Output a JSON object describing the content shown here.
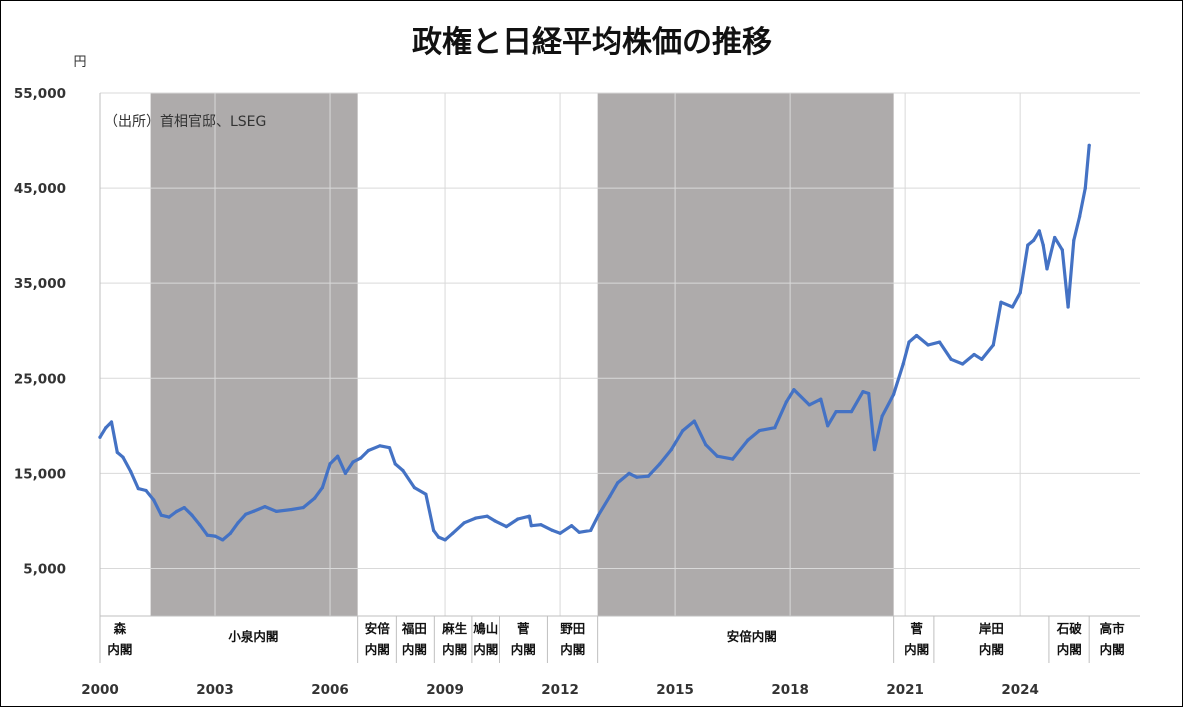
{
  "chart_data": {
    "type": "line",
    "title": "政権と日経平均株価の推移",
    "ylabel": "円",
    "note": "（出所）首相官邸、LSEG",
    "ylim": [
      0,
      55000
    ],
    "yticks": [
      5000,
      15000,
      25000,
      35000,
      45000,
      55000
    ],
    "ytick_labels": [
      "5,000",
      "15,000",
      "25,000",
      "35,000",
      "45,000",
      "55,000"
    ],
    "xlim": [
      2000,
      2025.9
    ],
    "xticks": [
      2000,
      2003,
      2006,
      2009,
      2012,
      2015,
      2018,
      2021,
      2024
    ],
    "xtick_labels": [
      "2000",
      "2003",
      "2006",
      "2009",
      "2012",
      "2015",
      "2018",
      "2021",
      "2024"
    ],
    "grid": true,
    "series": [
      {
        "color": "#4472C4",
        "x": [
          2000.0,
          2000.15,
          2000.3,
          2000.45,
          2000.6,
          2000.8,
          2001.0,
          2001.2,
          2001.4,
          2001.6,
          2001.8,
          2002.0,
          2002.2,
          2002.4,
          2002.6,
          2002.8,
          2003.0,
          2003.2,
          2003.4,
          2003.6,
          2003.8,
          2004.0,
          2004.3,
          2004.6,
          2005.0,
          2005.3,
          2005.6,
          2005.8,
          2006.0,
          2006.2,
          2006.4,
          2006.6,
          2006.8,
          2007.0,
          2007.3,
          2007.55,
          2007.7,
          2007.9,
          2008.2,
          2008.5,
          2008.7,
          2008.83,
          2009.0,
          2009.2,
          2009.5,
          2009.8,
          2010.1,
          2010.3,
          2010.6,
          2010.9,
          2011.2,
          2011.25,
          2011.5,
          2011.8,
          2012.0,
          2012.3,
          2012.5,
          2012.8,
          2013.0,
          2013.3,
          2013.5,
          2013.8,
          2014.0,
          2014.3,
          2014.6,
          2014.9,
          2015.2,
          2015.5,
          2015.8,
          2016.1,
          2016.5,
          2016.9,
          2017.2,
          2017.6,
          2017.9,
          2018.1,
          2018.5,
          2018.8,
          2018.98,
          2019.2,
          2019.6,
          2019.9,
          2020.05,
          2020.2,
          2020.4,
          2020.7,
          2020.95,
          2021.1,
          2021.3,
          2021.6,
          2021.9,
          2022.2,
          2022.5,
          2022.8,
          2023.0,
          2023.3,
          2023.5,
          2023.8,
          2024.0,
          2024.2,
          2024.35,
          2024.5,
          2024.6,
          2024.7,
          2024.9,
          2025.1,
          2025.25,
          2025.4,
          2025.55,
          2025.7,
          2025.8
        ],
        "y": [
          18800,
          19800,
          20400,
          17200,
          16700,
          15200,
          13400,
          13200,
          12200,
          10600,
          10400,
          11000,
          11400,
          10600,
          9600,
          8500,
          8400,
          8000,
          8700,
          9800,
          10700,
          11000,
          11500,
          11000,
          11200,
          11400,
          12400,
          13500,
          16000,
          16800,
          15000,
          16200,
          16600,
          17400,
          17900,
          17700,
          16000,
          15300,
          13500,
          12800,
          9000,
          8300,
          8000,
          8700,
          9800,
          10300,
          10500,
          10000,
          9400,
          10200,
          10500,
          9500,
          9600,
          9000,
          8700,
          9500,
          8800,
          9000,
          10600,
          12600,
          14000,
          15000,
          14600,
          14700,
          16000,
          17500,
          19500,
          20500,
          18000,
          16800,
          16500,
          18500,
          19500,
          19800,
          22500,
          23800,
          22200,
          22800,
          20000,
          21500,
          21500,
          23600,
          23400,
          17500,
          21000,
          23300,
          26500,
          28800,
          29500,
          28500,
          28800,
          27000,
          26500,
          27500,
          27000,
          28500,
          33000,
          32500,
          34000,
          39000,
          39500,
          40500,
          39000,
          36500,
          39800,
          38500,
          32500,
          39500,
          42000,
          45000,
          49500
        ]
      }
    ],
    "cabinet_bands": [
      [
        2001.32,
        2006.72
      ],
      [
        2012.98,
        2020.7
      ]
    ],
    "cabinet_dividers": [
      2006.72,
      2007.73,
      2008.72,
      2009.7,
      2010.42,
      2011.67,
      2012.98,
      2020.7,
      2021.75,
      2024.75,
      2025.8
    ],
    "cabinets": [
      {
        "line1": "森",
        "line2": "内閣",
        "x": 2000.52
      },
      {
        "line1": "小泉内閣",
        "line2": "",
        "x": 2004.0
      },
      {
        "line1": "安倍",
        "line2": "内閣",
        "x": 2007.23
      },
      {
        "line1": "福田",
        "line2": "内閣",
        "x": 2008.2
      },
      {
        "line1": "麻生",
        "line2": "内閣",
        "x": 2009.25
      },
      {
        "line1": "鳩山",
        "line2": "内閣",
        "x": 2010.06
      },
      {
        "line1": "菅",
        "line2": "内閣",
        "x": 2011.04
      },
      {
        "line1": "野田",
        "line2": "内閣",
        "x": 2012.33
      },
      {
        "line1": "安倍内閣",
        "line2": "",
        "x": 2017.0
      },
      {
        "line1": "菅",
        "line2": "内閣",
        "x": 2021.3
      },
      {
        "line1": "岸田",
        "line2": "内閣",
        "x": 2023.25
      },
      {
        "line1": "石破",
        "line2": "内閣",
        "x": 2025.28
      },
      {
        "line1": "高市",
        "line2": "内閣",
        "x": 2026.4
      }
    ]
  }
}
